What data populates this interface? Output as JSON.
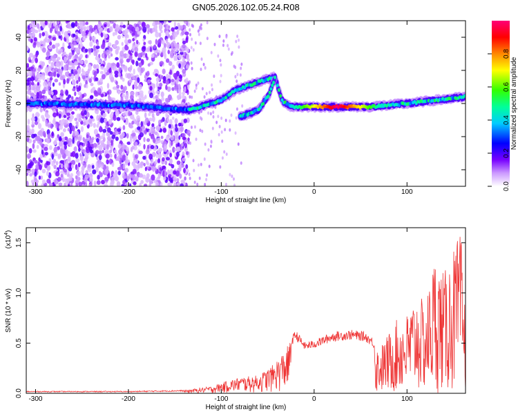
{
  "title": "GN05.2026.102.05.24.R08",
  "chart_data": [
    {
      "type": "heatmap",
      "xlabel": "Height of straight line (km)",
      "ylabel": "Frequency (Hz)",
      "xlim": [
        -310,
        163
      ],
      "ylim": [
        -50,
        50
      ],
      "xticks": [
        -300,
        -200,
        -100,
        0,
        100
      ],
      "yticks": [
        -40,
        -20,
        0,
        20,
        40
      ],
      "colorbar": {
        "label": "Normalized spectral amplitude",
        "range": [
          0.0,
          1.0
        ],
        "ticks": [
          0.0,
          0.2,
          0.4,
          0.6,
          0.8
        ],
        "tick_labels": [
          "0.0",
          "0.2",
          "0.4",
          "0.6",
          "0.8"
        ],
        "colors": [
          "#ffffff",
          "#7700ff",
          "#0000ff",
          "#00ffff",
          "#00ff00",
          "#ffff00",
          "#ff7f00",
          "#ff0000",
          "#ff0080"
        ]
      },
      "features": [
        {
          "name": "scattered noise",
          "x_range": [
            -310,
            -135
          ],
          "freq_range": [
            -50,
            50
          ],
          "amplitude": 0.15
        },
        {
          "name": "main trace",
          "points": [
            [
              -310,
              0
            ],
            [
              -200,
              -1
            ],
            [
              -135,
              -4
            ],
            [
              -100,
              2
            ],
            [
              -85,
              8
            ],
            [
              -75,
              10
            ],
            [
              -55,
              14
            ],
            [
              -42,
              16
            ],
            [
              -35,
              2
            ],
            [
              -25,
              -2
            ],
            [
              0,
              -2
            ],
            [
              60,
              -2
            ],
            [
              100,
              0
            ],
            [
              163,
              4
            ]
          ]
        },
        {
          "name": "branch",
          "points": [
            [
              -80,
              -8
            ],
            [
              -60,
              -4
            ],
            [
              -48,
              6
            ],
            [
              -42,
              16
            ]
          ]
        },
        {
          "name": "peak region",
          "x_range": [
            -25,
            75
          ],
          "freq": -2,
          "amplitude": 1.0
        }
      ]
    },
    {
      "type": "line",
      "xlabel": "Height of straight line (km)",
      "ylabel": "SNR (10 * v/v)",
      "y_multiplier": "(x10",
      "y_multiplier_exp": "4",
      "y_multiplier_close": ")",
      "xlim": [
        -310,
        163
      ],
      "ylim": [
        0,
        1.65
      ],
      "xticks": [
        -300,
        -200,
        -100,
        0,
        100
      ],
      "yticks": [
        0.0,
        0.5,
        1.0,
        1.5
      ],
      "ytick_labels": [
        "0.0",
        "0.5",
        "1.0",
        "1.5"
      ],
      "color": "#ee3333",
      "envelope_x": [
        -310,
        -200,
        -140,
        -110,
        -95,
        -80,
        -60,
        -45,
        -30,
        -20,
        -10,
        0,
        20,
        40,
        55,
        62,
        70,
        80,
        90,
        100,
        110,
        120,
        130,
        140,
        150,
        158,
        163
      ],
      "envelope_y": [
        0.02,
        0.02,
        0.03,
        0.07,
        0.12,
        0.16,
        0.18,
        0.28,
        0.45,
        0.62,
        0.5,
        0.52,
        0.6,
        0.62,
        0.6,
        0.55,
        0.45,
        0.6,
        0.75,
        0.8,
        1.0,
        0.9,
        1.4,
        1.2,
        1.45,
        1.6,
        0.8
      ]
    }
  ]
}
